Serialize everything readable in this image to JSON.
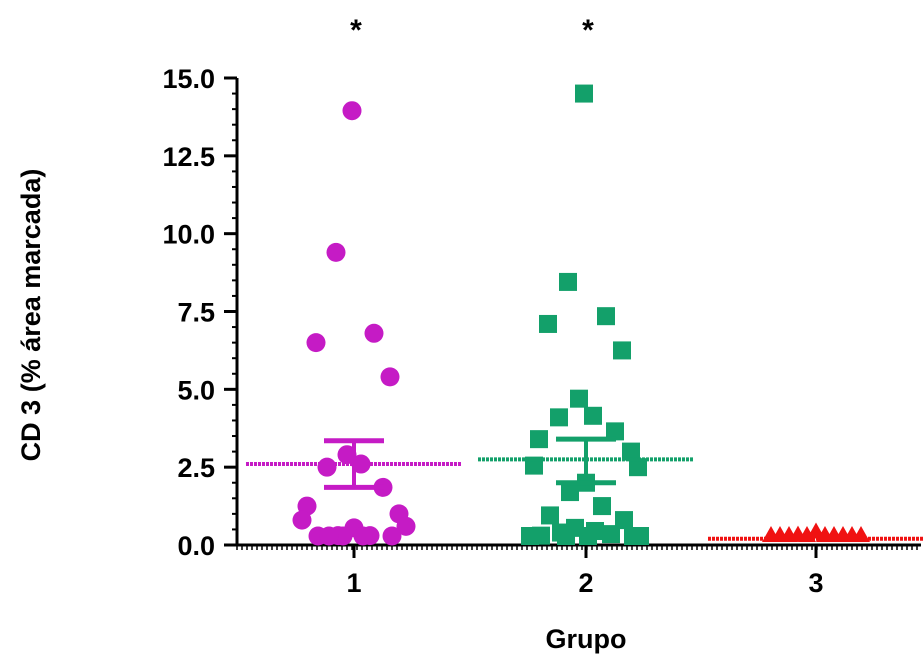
{
  "chart_data": {
    "type": "scatter",
    "xlabel": "Grupo",
    "ylabel": "CD 3 (% área marcada)",
    "ylim": [
      0,
      15
    ],
    "y_ticks": [
      "0.0",
      "2.5",
      "5.0",
      "7.5",
      "10.0",
      "12.5",
      "15.0"
    ],
    "grid": false,
    "categories": [
      "1",
      "2",
      "3"
    ],
    "significance": [
      "*",
      "*",
      ""
    ],
    "series": [
      {
        "category": "1",
        "marker": "circle",
        "color": "#C51BC5",
        "mean": 2.6,
        "sem_low": 1.85,
        "sem_high": 3.35,
        "points": [
          13.95,
          9.4,
          6.8,
          6.5,
          5.4,
          2.9,
          2.6,
          2.5,
          1.85,
          1.25,
          1.0,
          0.8,
          0.6,
          0.55,
          0.3,
          0.3,
          0.2,
          0.15,
          0.15,
          0.1,
          0.1
        ]
      },
      {
        "category": "2",
        "marker": "square",
        "color": "#13A06A",
        "mean": 2.75,
        "sem_low": 2.0,
        "sem_high": 3.4,
        "points": [
          14.5,
          8.45,
          7.35,
          7.1,
          6.25,
          4.7,
          4.15,
          4.1,
          3.65,
          3.4,
          3.0,
          2.55,
          2.5,
          2.0,
          1.7,
          1.25,
          0.95,
          0.8,
          0.55,
          0.45,
          0.4,
          0.35,
          0.3,
          0.25,
          0.2,
          0.1,
          0.05,
          0.05
        ]
      },
      {
        "category": "3",
        "marker": "triangle",
        "color": "#F01212",
        "mean": 0.2,
        "sem_low": 0.15,
        "sem_high": 0.25,
        "points": [
          0.4,
          0.3,
          0.25,
          0.2,
          0.2,
          0.15,
          0.15,
          0.1,
          0.1,
          0.05,
          0.05
        ]
      }
    ]
  }
}
